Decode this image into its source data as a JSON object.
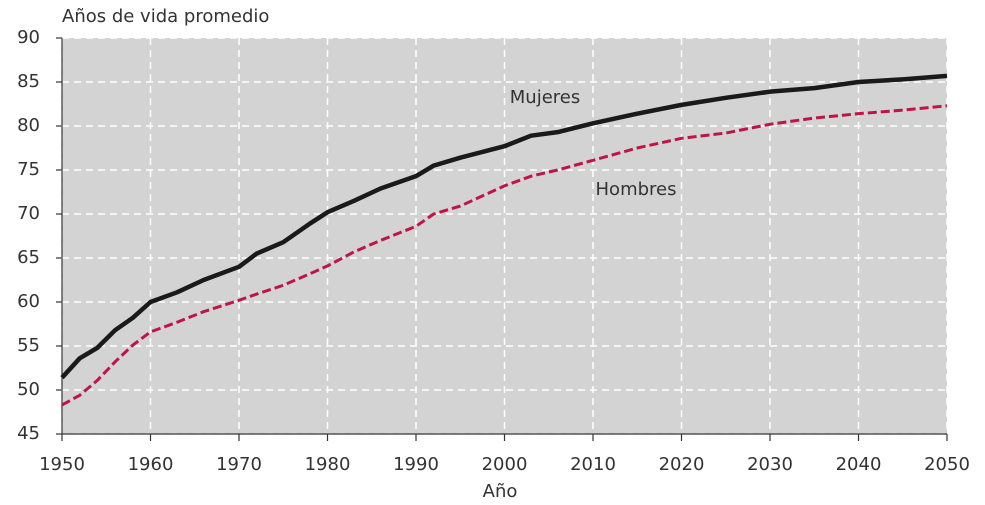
{
  "chart_data": {
    "type": "line",
    "y_label": "Años de vida promedio",
    "x_label": "Año",
    "x": [
      1950,
      1952,
      1954,
      1956,
      1958,
      1960,
      1963,
      1966,
      1970,
      1972,
      1975,
      1978,
      1980,
      1983,
      1986,
      1990,
      1992,
      1995,
      2000,
      2003,
      2006,
      2010,
      2015,
      2020,
      2025,
      2030,
      2035,
      2040,
      2045,
      2050
    ],
    "series": [
      {
        "name": "Mujeres",
        "color": "#1a1a1a",
        "dashed": false,
        "values": [
          51.4,
          53.6,
          54.8,
          56.8,
          58.2,
          60.0,
          61.1,
          62.5,
          64.0,
          65.5,
          66.8,
          68.9,
          70.2,
          71.5,
          72.9,
          74.3,
          75.5,
          76.4,
          77.7,
          78.9,
          79.3,
          80.3,
          81.4,
          82.4,
          83.2,
          83.9,
          84.3,
          85.0,
          85.3,
          85.7
        ]
      },
      {
        "name": "Hombres",
        "color": "#c0134a",
        "dashed": true,
        "values": [
          48.3,
          49.4,
          51.1,
          53.2,
          55.1,
          56.6,
          57.7,
          58.9,
          60.2,
          60.9,
          61.9,
          63.2,
          64.1,
          65.7,
          67.0,
          68.6,
          70.0,
          70.9,
          73.2,
          74.3,
          75.0,
          76.1,
          77.5,
          78.6,
          79.2,
          80.2,
          80.9,
          81.4,
          81.8,
          82.3
        ]
      }
    ],
    "xlim": [
      1950,
      2050
    ],
    "xticks": [
      1950,
      1960,
      1970,
      1980,
      1990,
      2000,
      2010,
      2020,
      2030,
      2040,
      2050
    ],
    "ylim": [
      45,
      90
    ],
    "yticks": [
      45,
      50,
      55,
      60,
      65,
      70,
      75,
      80,
      85,
      90
    ],
    "grid": true
  }
}
